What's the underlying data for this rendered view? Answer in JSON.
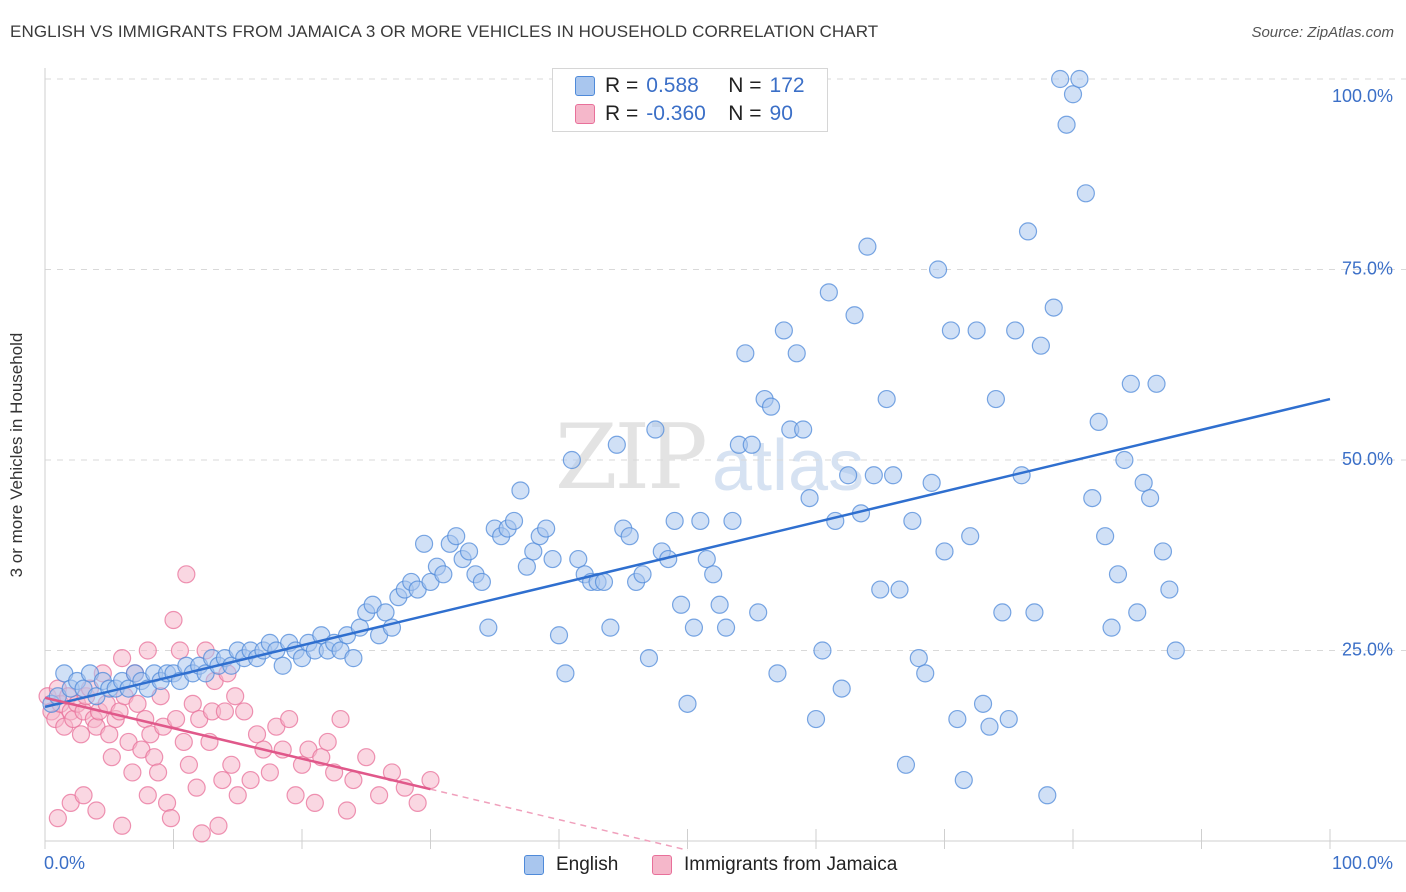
{
  "title": "ENGLISH VS IMMIGRANTS FROM JAMAICA 3 OR MORE VEHICLES IN HOUSEHOLD CORRELATION CHART",
  "source": "Source: ZipAtlas.com",
  "watermark": {
    "a": "ZIP",
    "b": "atlas"
  },
  "colors": {
    "english": "#4f8ad9",
    "english_fill": "#a9c6ee",
    "jamaica": "#e8709a",
    "jamaica_fill": "#f5b7ca",
    "grid": "#d9d9d9",
    "axis_label": "#3b6fc7"
  },
  "correlation": {
    "rows": [
      {
        "r_label": "R =",
        "r_value": "0.588",
        "n_label": "N =",
        "n_value": "172"
      },
      {
        "r_label": "R =",
        "r_value": "-0.360",
        "n_label": "N =",
        "n_value": "90"
      }
    ]
  },
  "legend": {
    "english": "English",
    "jamaica": "Immigrants from Jamaica"
  },
  "chart_data": {
    "type": "scatter",
    "title": "ENGLISH VS IMMIGRANTS FROM JAMAICA 3 OR MORE VEHICLES IN HOUSEHOLD CORRELATION CHART",
    "xlabel": "",
    "ylabel": "3 or more Vehicles in Household",
    "xlim": [
      0,
      100
    ],
    "ylim": [
      0,
      100
    ],
    "x_tick_labels": [
      "0.0%",
      "100.0%"
    ],
    "y_tick_labels": [
      "25.0%",
      "50.0%",
      "75.0%",
      "100.0%"
    ],
    "y_ticks": [
      25,
      50,
      75,
      100
    ],
    "grid": true,
    "legend_position": "bottom-center",
    "series": [
      {
        "name": "English",
        "r": 0.588,
        "n": 172,
        "trend": {
          "x0": 0,
          "y0": 17.6,
          "x1": 100,
          "y1": 58.0
        },
        "points": [
          [
            0.5,
            18
          ],
          [
            1,
            19
          ],
          [
            1.5,
            22
          ],
          [
            2,
            20
          ],
          [
            2.5,
            21
          ],
          [
            3,
            20
          ],
          [
            3.5,
            22
          ],
          [
            4,
            19
          ],
          [
            4.5,
            21
          ],
          [
            5,
            20
          ],
          [
            5.5,
            20
          ],
          [
            6,
            21
          ],
          [
            6.5,
            20
          ],
          [
            7,
            22
          ],
          [
            7.5,
            21
          ],
          [
            8,
            20
          ],
          [
            8.5,
            22
          ],
          [
            9,
            21
          ],
          [
            9.5,
            22
          ],
          [
            10,
            22
          ],
          [
            10.5,
            21
          ],
          [
            11,
            23
          ],
          [
            11.5,
            22
          ],
          [
            12,
            23
          ],
          [
            12.5,
            22
          ],
          [
            13,
            24
          ],
          [
            13.5,
            23
          ],
          [
            14,
            24
          ],
          [
            14.5,
            23
          ],
          [
            15,
            25
          ],
          [
            15.5,
            24
          ],
          [
            16,
            25
          ],
          [
            16.5,
            24
          ],
          [
            17,
            25
          ],
          [
            17.5,
            26
          ],
          [
            18,
            25
          ],
          [
            18.5,
            23
          ],
          [
            19,
            26
          ],
          [
            19.5,
            25
          ],
          [
            20,
            24
          ],
          [
            20.5,
            26
          ],
          [
            21,
            25
          ],
          [
            21.5,
            27
          ],
          [
            22,
            25
          ],
          [
            22.5,
            26
          ],
          [
            23,
            25
          ],
          [
            23.5,
            27
          ],
          [
            24,
            24
          ],
          [
            24.5,
            28
          ],
          [
            25,
            30
          ],
          [
            25.5,
            31
          ],
          [
            26,
            27
          ],
          [
            26.5,
            30
          ],
          [
            27,
            28
          ],
          [
            27.5,
            32
          ],
          [
            28,
            33
          ],
          [
            28.5,
            34
          ],
          [
            29,
            33
          ],
          [
            29.5,
            39
          ],
          [
            30,
            34
          ],
          [
            30.5,
            36
          ],
          [
            31,
            35
          ],
          [
            31.5,
            39
          ],
          [
            32,
            40
          ],
          [
            32.5,
            37
          ],
          [
            33,
            38
          ],
          [
            33.5,
            35
          ],
          [
            34,
            34
          ],
          [
            34.5,
            28
          ],
          [
            35,
            41
          ],
          [
            35.5,
            40
          ],
          [
            36,
            41
          ],
          [
            36.5,
            42
          ],
          [
            37,
            46
          ],
          [
            37.5,
            36
          ],
          [
            38,
            38
          ],
          [
            38.5,
            40
          ],
          [
            39,
            41
          ],
          [
            39.5,
            37
          ],
          [
            40,
            27
          ],
          [
            40.5,
            22
          ],
          [
            41,
            50
          ],
          [
            41.5,
            37
          ],
          [
            42,
            35
          ],
          [
            42.5,
            34
          ],
          [
            43,
            34
          ],
          [
            43.5,
            34
          ],
          [
            44,
            28
          ],
          [
            44.5,
            52
          ],
          [
            45,
            41
          ],
          [
            45.5,
            40
          ],
          [
            46,
            34
          ],
          [
            46.5,
            35
          ],
          [
            47,
            24
          ],
          [
            47.5,
            54
          ],
          [
            48,
            38
          ],
          [
            48.5,
            37
          ],
          [
            49,
            42
          ],
          [
            49.5,
            31
          ],
          [
            50,
            18
          ],
          [
            50.5,
            28
          ],
          [
            51,
            42
          ],
          [
            51.5,
            37
          ],
          [
            52,
            35
          ],
          [
            52.5,
            31
          ],
          [
            53,
            28
          ],
          [
            53.5,
            42
          ],
          [
            54,
            52
          ],
          [
            54.5,
            64
          ],
          [
            55,
            52
          ],
          [
            55.5,
            30
          ],
          [
            56,
            58
          ],
          [
            56.5,
            57
          ],
          [
            57,
            22
          ],
          [
            57.5,
            67
          ],
          [
            58,
            54
          ],
          [
            58.5,
            64
          ],
          [
            59,
            54
          ],
          [
            59.5,
            45
          ],
          [
            60,
            16
          ],
          [
            60.5,
            25
          ],
          [
            61,
            72
          ],
          [
            61.5,
            42
          ],
          [
            62,
            20
          ],
          [
            62.5,
            48
          ],
          [
            63,
            69
          ],
          [
            63.5,
            43
          ],
          [
            64,
            78
          ],
          [
            64.5,
            48
          ],
          [
            65,
            33
          ],
          [
            65.5,
            58
          ],
          [
            66,
            48
          ],
          [
            66.5,
            33
          ],
          [
            67,
            10
          ],
          [
            67.5,
            42
          ],
          [
            68,
            24
          ],
          [
            68.5,
            22
          ],
          [
            69,
            47
          ],
          [
            69.5,
            75
          ],
          [
            70,
            38
          ],
          [
            70.5,
            67
          ],
          [
            71,
            16
          ],
          [
            71.5,
            8
          ],
          [
            72,
            40
          ],
          [
            72.5,
            67
          ],
          [
            73,
            18
          ],
          [
            73.5,
            15
          ],
          [
            74,
            58
          ],
          [
            74.5,
            30
          ],
          [
            75,
            16
          ],
          [
            75.5,
            67
          ],
          [
            76,
            48
          ],
          [
            76.5,
            80
          ],
          [
            77,
            30
          ],
          [
            77.5,
            65
          ],
          [
            78,
            6
          ],
          [
            78.5,
            70
          ],
          [
            79,
            100
          ],
          [
            79.5,
            94
          ],
          [
            80,
            98
          ],
          [
            80.5,
            100
          ],
          [
            81,
            85
          ],
          [
            81.5,
            45
          ],
          [
            82,
            55
          ],
          [
            82.5,
            40
          ],
          [
            83,
            28
          ],
          [
            83.5,
            35
          ],
          [
            84,
            50
          ],
          [
            84.5,
            60
          ],
          [
            85,
            30
          ],
          [
            85.5,
            47
          ],
          [
            86,
            45
          ],
          [
            86.5,
            60
          ],
          [
            87,
            38
          ],
          [
            87.5,
            33
          ],
          [
            88,
            25
          ]
        ]
      },
      {
        "name": "Immigrants from Jamaica",
        "r": -0.36,
        "n": 90,
        "trend": {
          "x0": 0,
          "y0": 18.8,
          "x1": 30,
          "y1": 6.8,
          "dash_to_x": 50
        },
        "points": [
          [
            0.2,
            19
          ],
          [
            0.5,
            17
          ],
          [
            0.8,
            16
          ],
          [
            1,
            20
          ],
          [
            1.2,
            18
          ],
          [
            1.5,
            15
          ],
          [
            1.8,
            19
          ],
          [
            2,
            17
          ],
          [
            2.2,
            16
          ],
          [
            2.5,
            18
          ],
          [
            2.8,
            14
          ],
          [
            3,
            17
          ],
          [
            3.2,
            19
          ],
          [
            3.5,
            20
          ],
          [
            3.8,
            16
          ],
          [
            4,
            15
          ],
          [
            4.2,
            17
          ],
          [
            4.5,
            22
          ],
          [
            4.8,
            18
          ],
          [
            5,
            14
          ],
          [
            5.2,
            11
          ],
          [
            5.5,
            16
          ],
          [
            5.8,
            17
          ],
          [
            6,
            24
          ],
          [
            6.2,
            19
          ],
          [
            6.5,
            13
          ],
          [
            6.8,
            9
          ],
          [
            7,
            22
          ],
          [
            7.2,
            18
          ],
          [
            7.5,
            12
          ],
          [
            7.8,
            16
          ],
          [
            8,
            25
          ],
          [
            8.2,
            14
          ],
          [
            8.5,
            11
          ],
          [
            8.8,
            9
          ],
          [
            9,
            19
          ],
          [
            9.2,
            15
          ],
          [
            9.5,
            5
          ],
          [
            9.8,
            3
          ],
          [
            10,
            29
          ],
          [
            10.2,
            16
          ],
          [
            10.5,
            25
          ],
          [
            10.8,
            13
          ],
          [
            11,
            35
          ],
          [
            11.2,
            10
          ],
          [
            11.5,
            18
          ],
          [
            11.8,
            7
          ],
          [
            12,
            16
          ],
          [
            12.2,
            1
          ],
          [
            12.5,
            25
          ],
          [
            12.8,
            13
          ],
          [
            13,
            17
          ],
          [
            13.2,
            21
          ],
          [
            13.5,
            2
          ],
          [
            13.8,
            8
          ],
          [
            14,
            17
          ],
          [
            14.2,
            22
          ],
          [
            14.5,
            10
          ],
          [
            14.8,
            19
          ],
          [
            15,
            6
          ],
          [
            15.5,
            17
          ],
          [
            16,
            8
          ],
          [
            16.5,
            14
          ],
          [
            17,
            12
          ],
          [
            17.5,
            9
          ],
          [
            18,
            15
          ],
          [
            18.5,
            12
          ],
          [
            19,
            16
          ],
          [
            19.5,
            6
          ],
          [
            20,
            10
          ],
          [
            20.5,
            12
          ],
          [
            21,
            5
          ],
          [
            21.5,
            11
          ],
          [
            22,
            13
          ],
          [
            22.5,
            9
          ],
          [
            23,
            16
          ],
          [
            23.5,
            4
          ],
          [
            24,
            8
          ],
          [
            25,
            11
          ],
          [
            26,
            6
          ],
          [
            27,
            9
          ],
          [
            28,
            7
          ],
          [
            29,
            5
          ],
          [
            30,
            8
          ],
          [
            1,
            3
          ],
          [
            2,
            5
          ],
          [
            3,
            6
          ],
          [
            4,
            4
          ],
          [
            6,
            2
          ],
          [
            8,
            6
          ]
        ]
      }
    ]
  }
}
